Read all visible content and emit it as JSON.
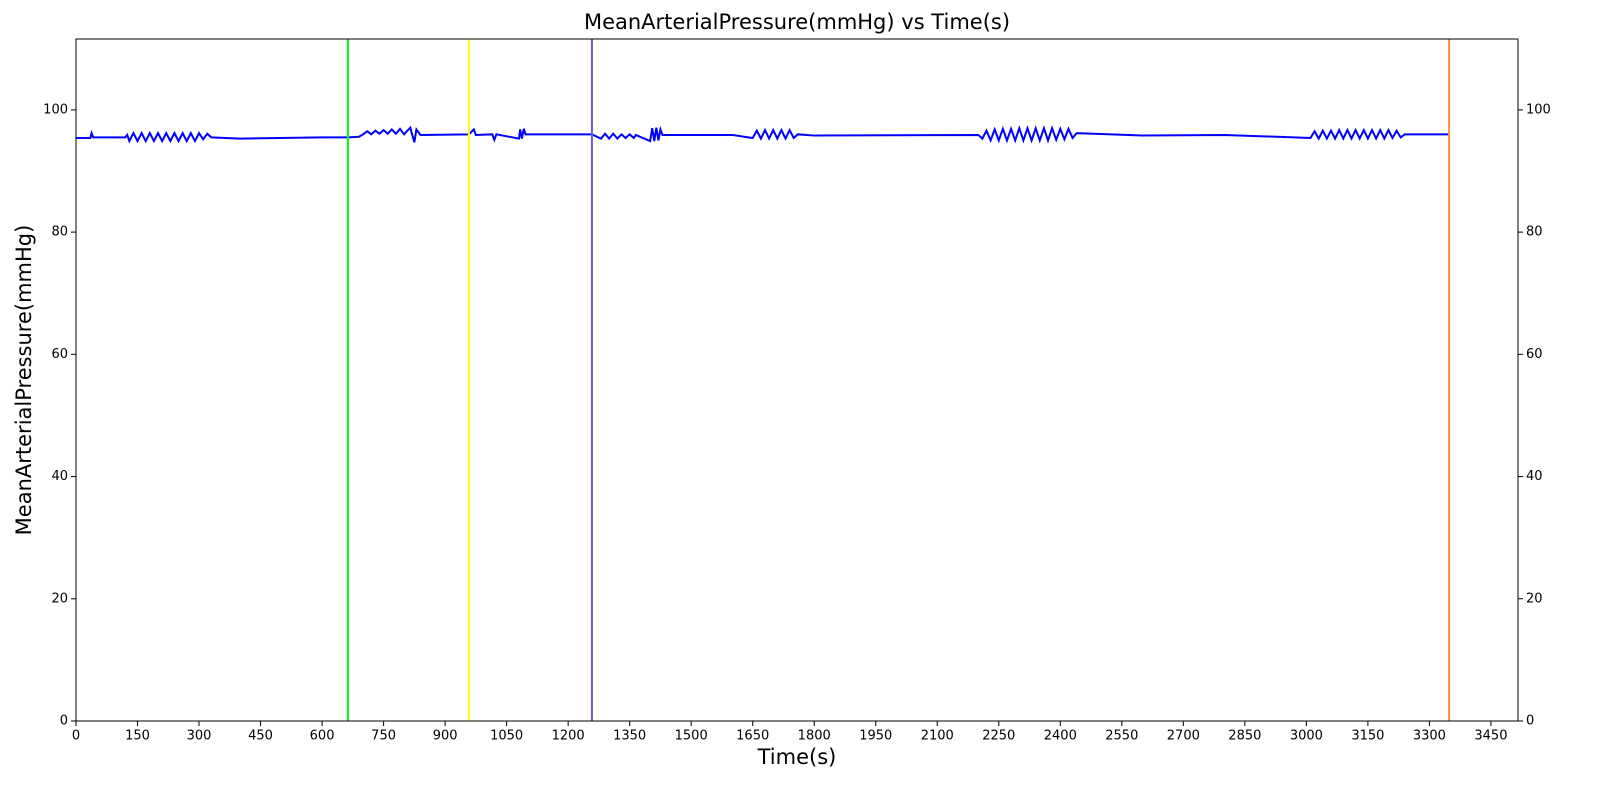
{
  "chart_data": {
    "type": "line",
    "title": "MeanArterialPressure(mmHg) vs Time(s)",
    "x_label": "Time(s)",
    "y_label": "MeanArterialPressure(mmHg)",
    "xlim": [
      0,
      3516
    ],
    "ylim": [
      0,
      111.6
    ],
    "xticks": [
      0,
      150,
      300,
      450,
      600,
      750,
      900,
      1050,
      1200,
      1350,
      1500,
      1650,
      1800,
      1950,
      2100,
      2250,
      2400,
      2550,
      2700,
      2850,
      3000,
      3150,
      3300,
      3450
    ],
    "yticks": [
      0,
      20,
      40,
      60,
      80,
      100
    ],
    "right_axis": true,
    "vlines": [
      {
        "x": 663,
        "color": "#00ff00"
      },
      {
        "x": 958,
        "color": "#ffff00"
      },
      {
        "x": 1258,
        "color": "#6a5acd"
      },
      {
        "x": 3348,
        "color": "#ff8c40"
      }
    ],
    "series": [
      {
        "color": "#0000ff",
        "x": [
          0,
          35,
          38,
          42,
          120,
          125,
          130,
          140,
          150,
          160,
          170,
          180,
          190,
          200,
          210,
          220,
          230,
          240,
          250,
          260,
          270,
          280,
          290,
          300,
          310,
          320,
          330,
          400,
          600,
          663,
          690,
          700,
          710,
          720,
          730,
          740,
          750,
          760,
          770,
          780,
          790,
          800,
          815,
          820,
          825,
          830,
          840,
          958,
          970,
          975,
          1015,
          1020,
          1025,
          1080,
          1083,
          1087,
          1092,
          1096,
          1200,
          1258,
          1280,
          1290,
          1300,
          1310,
          1320,
          1330,
          1340,
          1350,
          1360,
          1365,
          1400,
          1405,
          1410,
          1415,
          1420,
          1425,
          1430,
          1600,
          1650,
          1660,
          1670,
          1680,
          1690,
          1700,
          1710,
          1720,
          1730,
          1740,
          1750,
          1760,
          1800,
          2200,
          2210,
          2220,
          2230,
          2240,
          2250,
          2260,
          2270,
          2280,
          2290,
          2300,
          2310,
          2320,
          2330,
          2340,
          2350,
          2360,
          2370,
          2380,
          2390,
          2400,
          2410,
          2420,
          2430,
          2440,
          2600,
          2800,
          3010,
          3020,
          3030,
          3040,
          3050,
          3060,
          3070,
          3080,
          3090,
          3100,
          3110,
          3120,
          3130,
          3140,
          3150,
          3160,
          3170,
          3180,
          3190,
          3200,
          3210,
          3220,
          3230,
          3240,
          3348
        ],
        "values": [
          95.4,
          95.4,
          96.2,
          95.5,
          95.5,
          95.9,
          94.9,
          96.2,
          94.9,
          96.2,
          94.9,
          96.2,
          94.9,
          96.2,
          94.9,
          96.2,
          94.9,
          96.2,
          94.9,
          96.2,
          94.9,
          96.2,
          94.9,
          96.2,
          95.2,
          96.1,
          95.5,
          95.3,
          95.5,
          95.5,
          95.6,
          96.0,
          96.5,
          96.0,
          96.6,
          96.1,
          96.7,
          96.1,
          96.8,
          96.1,
          96.9,
          96.0,
          97.1,
          95.9,
          94.7,
          96.8,
          95.9,
          96.0,
          96.8,
          95.9,
          96.0,
          95.1,
          96.0,
          95.3,
          96.8,
          95.3,
          96.9,
          96.0,
          96.0,
          96.0,
          95.3,
          96.1,
          95.3,
          96.1,
          95.3,
          96.0,
          95.4,
          96.0,
          95.4,
          95.9,
          94.9,
          97.0,
          94.9,
          97.1,
          95.0,
          96.8,
          95.9,
          95.9,
          95.4,
          96.6,
          95.3,
          96.7,
          95.3,
          96.7,
          95.3,
          96.7,
          95.3,
          96.7,
          95.4,
          96.0,
          95.8,
          95.9,
          95.3,
          96.6,
          95.0,
          96.8,
          95.0,
          96.9,
          95.0,
          96.9,
          95.0,
          97.0,
          95.0,
          97.0,
          95.0,
          97.0,
          95.0,
          97.0,
          95.0,
          97.0,
          95.1,
          96.9,
          95.2,
          96.9,
          95.4,
          96.2,
          95.8,
          95.9,
          95.4,
          96.5,
          95.3,
          96.6,
          95.3,
          96.6,
          95.3,
          96.7,
          95.3,
          96.7,
          95.3,
          96.7,
          95.3,
          96.7,
          95.3,
          96.7,
          95.3,
          96.7,
          95.3,
          96.7,
          95.4,
          96.6,
          95.5,
          96.0,
          96.0
        ]
      }
    ]
  }
}
